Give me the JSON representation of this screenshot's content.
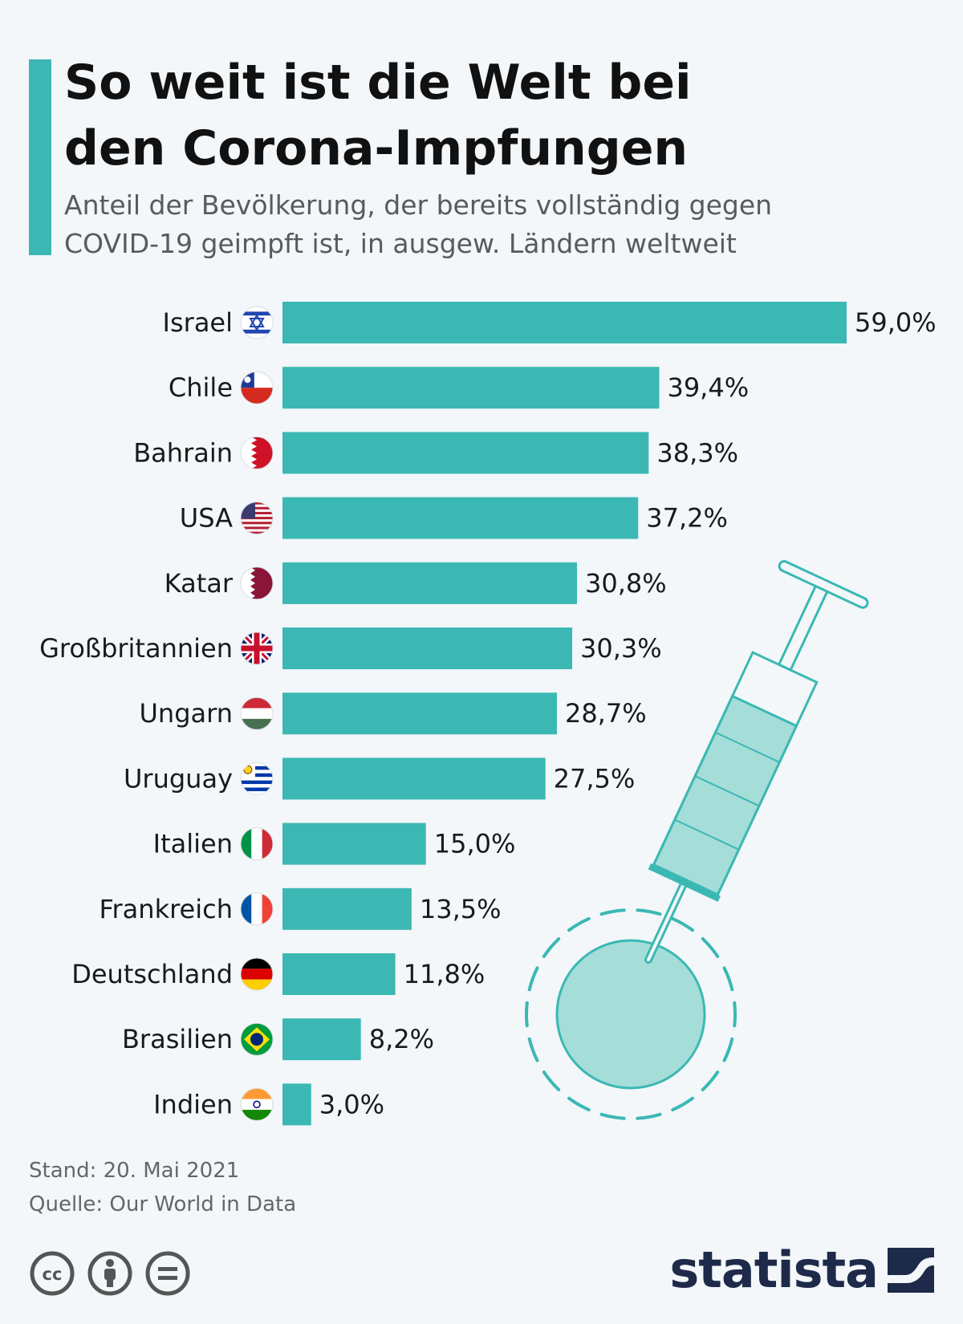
{
  "header": {
    "title": "So weit ist die Welt bei\nden Corona-Impfungen",
    "subtitle": "Anteil der Bevölkerung, der bereits vollständig gegen\nCOVID-19 geimpft ist, in ausgew. Ländern weltweit"
  },
  "footer": {
    "date_note": "Stand: 20. Mai 2021",
    "source_note": "Quelle: Our World in Data",
    "brand": "statista"
  },
  "icons": {
    "license": [
      "cc-icon",
      "by-icon",
      "nd-icon"
    ],
    "decoration": "syringe-virus-illustration",
    "brand_logo": "statista-logo-icon"
  },
  "colors": {
    "accent": "#3bb8b4",
    "bar": "#3bb8b4",
    "brand": "#1e2a49",
    "background": "#f3f7fa"
  },
  "chart_data": {
    "type": "bar",
    "orientation": "horizontal",
    "categories": [
      "Israel",
      "Chile",
      "Bahrain",
      "USA",
      "Katar",
      "Großbritannien",
      "Ungarn",
      "Uruguay",
      "Italien",
      "Frankreich",
      "Deutschland",
      "Brasilien",
      "Indien"
    ],
    "values": [
      59.0,
      39.4,
      38.3,
      37.2,
      30.8,
      30.3,
      28.7,
      27.5,
      15.0,
      13.5,
      11.8,
      8.2,
      3.0
    ],
    "value_labels": [
      "59,0%",
      "39,4%",
      "38,3%",
      "37,2%",
      "30,8%",
      "30,3%",
      "28,7%",
      "27,5%",
      "15,0%",
      "13,5%",
      "11,8%",
      "8,2%",
      "3,0%"
    ],
    "flags": [
      "flag-israel-icon",
      "flag-chile-icon",
      "flag-bahrain-icon",
      "flag-usa-icon",
      "flag-katar-icon",
      "flag-grossbritannien-icon",
      "flag-ungarn-icon",
      "flag-uruguay-icon",
      "flag-italien-icon",
      "flag-frankreich-icon",
      "flag-deutschland-icon",
      "flag-brasilien-icon",
      "flag-indien-icon"
    ],
    "unit": "%",
    "xlim": [
      0,
      59.0
    ],
    "grid": false,
    "legend": "none"
  }
}
